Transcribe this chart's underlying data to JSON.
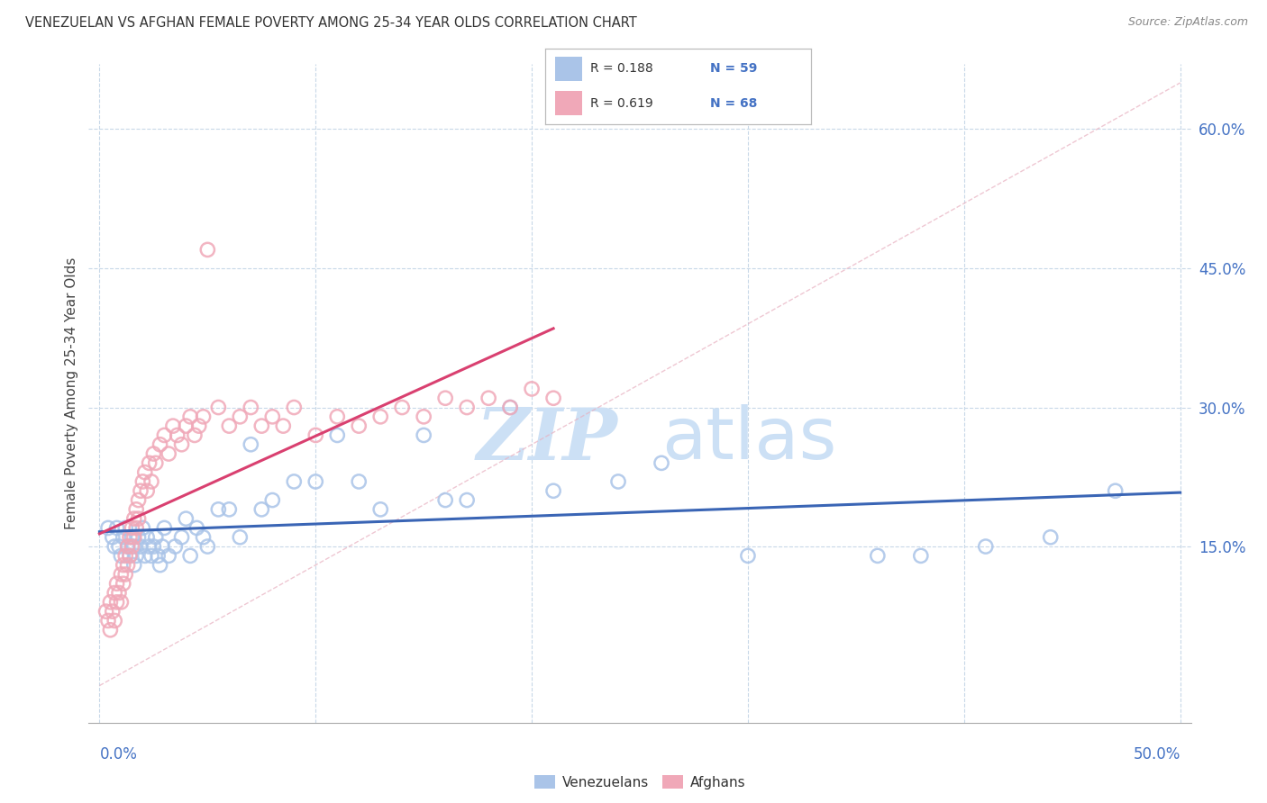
{
  "title": "VENEZUELAN VS AFGHAN FEMALE POVERTY AMONG 25-34 YEAR OLDS CORRELATION CHART",
  "source": "Source: ZipAtlas.com",
  "ylabel": "Female Poverty Among 25-34 Year Olds",
  "ytick_labels": [
    "60.0%",
    "45.0%",
    "30.0%",
    "15.0%"
  ],
  "ytick_values": [
    0.6,
    0.45,
    0.3,
    0.15
  ],
  "xlim": [
    -0.005,
    0.505
  ],
  "ylim": [
    -0.04,
    0.67
  ],
  "watermark_zip": "ZIP",
  "watermark_atlas": "atlas",
  "legend_r_venezuelan": "R = 0.188",
  "legend_n_venezuelan": "N = 59",
  "legend_r_afghan": "R = 0.619",
  "legend_n_afghan": "N = 68",
  "venezuelan_color": "#aac4e8",
  "afghan_color": "#f0a8b8",
  "venezuelan_line_color": "#3a65b5",
  "afghan_line_color": "#d94070",
  "diag_line_color": "#e8b0c0",
  "venezuelan_scatter_x": [
    0.004,
    0.006,
    0.007,
    0.008,
    0.009,
    0.01,
    0.011,
    0.012,
    0.013,
    0.014,
    0.015,
    0.016,
    0.016,
    0.017,
    0.018,
    0.019,
    0.02,
    0.021,
    0.022,
    0.023,
    0.024,
    0.025,
    0.026,
    0.027,
    0.028,
    0.029,
    0.03,
    0.032,
    0.035,
    0.038,
    0.04,
    0.042,
    0.045,
    0.048,
    0.05,
    0.055,
    0.06,
    0.065,
    0.07,
    0.075,
    0.08,
    0.09,
    0.1,
    0.11,
    0.12,
    0.13,
    0.15,
    0.16,
    0.17,
    0.19,
    0.21,
    0.24,
    0.26,
    0.3,
    0.36,
    0.38,
    0.41,
    0.44,
    0.47
  ],
  "venezuelan_scatter_y": [
    0.17,
    0.16,
    0.15,
    0.17,
    0.15,
    0.14,
    0.16,
    0.17,
    0.15,
    0.14,
    0.16,
    0.15,
    0.13,
    0.14,
    0.16,
    0.15,
    0.17,
    0.14,
    0.16,
    0.15,
    0.14,
    0.15,
    0.16,
    0.14,
    0.13,
    0.15,
    0.17,
    0.14,
    0.15,
    0.16,
    0.18,
    0.14,
    0.17,
    0.16,
    0.15,
    0.19,
    0.19,
    0.16,
    0.26,
    0.19,
    0.2,
    0.22,
    0.22,
    0.27,
    0.22,
    0.19,
    0.27,
    0.2,
    0.2,
    0.3,
    0.21,
    0.22,
    0.24,
    0.14,
    0.14,
    0.14,
    0.15,
    0.16,
    0.21
  ],
  "afghan_scatter_x": [
    0.003,
    0.004,
    0.005,
    0.005,
    0.006,
    0.007,
    0.007,
    0.008,
    0.008,
    0.009,
    0.01,
    0.01,
    0.011,
    0.011,
    0.012,
    0.012,
    0.013,
    0.013,
    0.014,
    0.014,
    0.015,
    0.015,
    0.016,
    0.016,
    0.017,
    0.017,
    0.018,
    0.018,
    0.019,
    0.02,
    0.021,
    0.022,
    0.023,
    0.024,
    0.025,
    0.026,
    0.028,
    0.03,
    0.032,
    0.034,
    0.036,
    0.038,
    0.04,
    0.042,
    0.044,
    0.046,
    0.048,
    0.05,
    0.055,
    0.06,
    0.065,
    0.07,
    0.075,
    0.08,
    0.085,
    0.09,
    0.1,
    0.11,
    0.12,
    0.13,
    0.14,
    0.15,
    0.16,
    0.17,
    0.18,
    0.19,
    0.2,
    0.21
  ],
  "afghan_scatter_y": [
    0.08,
    0.07,
    0.09,
    0.06,
    0.08,
    0.1,
    0.07,
    0.09,
    0.11,
    0.1,
    0.12,
    0.09,
    0.11,
    0.13,
    0.14,
    0.12,
    0.15,
    0.13,
    0.16,
    0.14,
    0.17,
    0.15,
    0.18,
    0.16,
    0.19,
    0.17,
    0.2,
    0.18,
    0.21,
    0.22,
    0.23,
    0.21,
    0.24,
    0.22,
    0.25,
    0.24,
    0.26,
    0.27,
    0.25,
    0.28,
    0.27,
    0.26,
    0.28,
    0.29,
    0.27,
    0.28,
    0.29,
    0.47,
    0.3,
    0.28,
    0.29,
    0.3,
    0.28,
    0.29,
    0.28,
    0.3,
    0.27,
    0.29,
    0.28,
    0.29,
    0.3,
    0.29,
    0.31,
    0.3,
    0.31,
    0.3,
    0.32,
    0.31
  ],
  "background_color": "#ffffff",
  "grid_color": "#c8d8e8",
  "title_color": "#333333",
  "axis_label_color": "#4472c4",
  "watermark_color": "#cce0f5",
  "legend_text_color": "#333333",
  "legend_n_color": "#4472c4"
}
